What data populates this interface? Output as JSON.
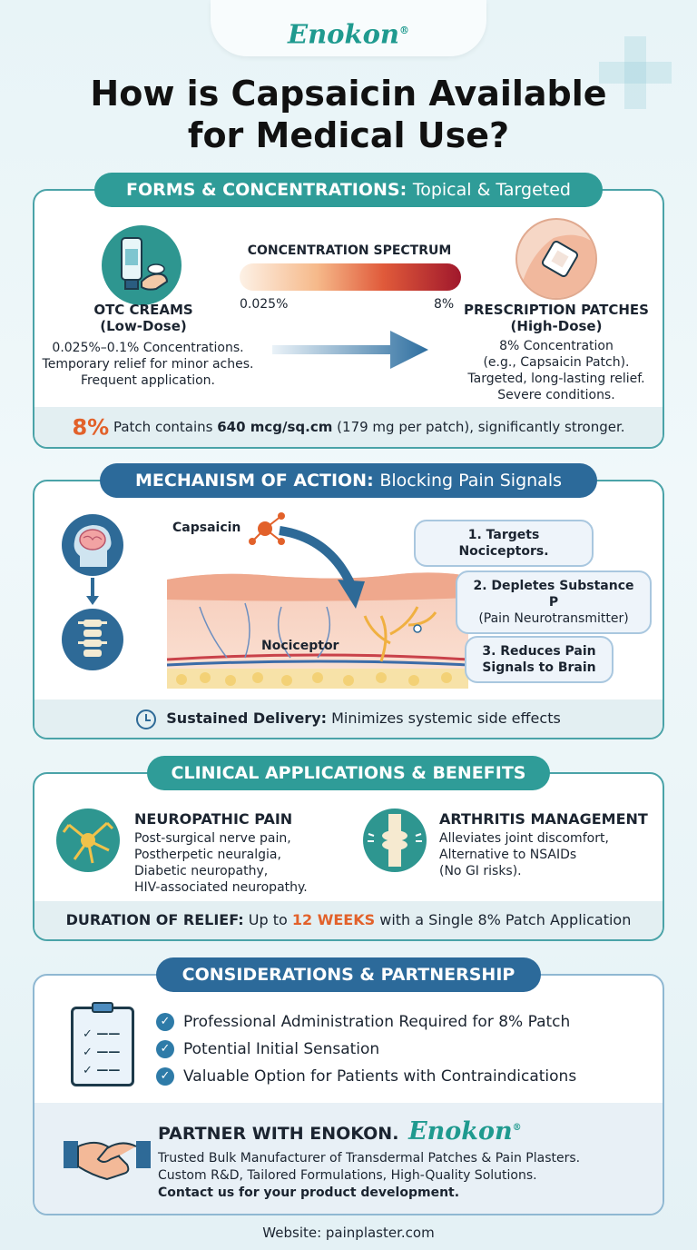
{
  "brand": {
    "name": "Enokon",
    "reg": "®"
  },
  "title": {
    "line1": "How is Capsaicin Available",
    "line2": "for Medical Use?"
  },
  "forms": {
    "header_bold": "FORMS & CONCENTRATIONS:",
    "header_light": "Topical & Targeted",
    "spectrum_title": "CONCENTRATION SPECTRUM",
    "spectrum_min": "0.025%",
    "spectrum_max": "8%",
    "otc_title": "OTC CREAMS",
    "otc_sub": "(Low-Dose)",
    "otc_lines": [
      "0.025%–0.1% Concentrations.",
      "Temporary relief for minor aches.",
      "Frequent application."
    ],
    "rx_title": "PRESCRIPTION PATCHES",
    "rx_sub": "(High-Dose)",
    "rx_lines": [
      "8% Concentration",
      "(e.g., Capsaicin Patch).",
      "Targeted, long-lasting relief.",
      "Severe conditions."
    ],
    "footer_big": "8%",
    "footer_a": "Patch contains",
    "footer_b": "640 mcg/sq.cm",
    "footer_c": "(179 mg per patch), significantly stronger."
  },
  "mechanism": {
    "header_bold": "MECHANISM OF ACTION:",
    "header_light": "Blocking Pain Signals",
    "capsaicin_label": "Capsaicin",
    "nociceptor_label": "Nociceptor",
    "step1": "1. Targets Nociceptors.",
    "step2a": "2. Depletes Substance P",
    "step2b": "(Pain Neurotransmitter)",
    "step3a": "3. Reduces Pain",
    "step3b": "Signals to Brain",
    "footer_bold": "Sustained Delivery:",
    "footer_text": "Minimizes systemic side effects"
  },
  "clinical": {
    "header": "CLINICAL APPLICATIONS & BENEFITS",
    "neuro_title": "NEUROPATHIC PAIN",
    "neuro_lines": [
      "Post-surgical nerve pain,",
      "Postherpetic neuralgia,",
      "Diabetic neuropathy,",
      "HIV-associated neuropathy."
    ],
    "arth_title": "ARTHRITIS MANAGEMENT",
    "arth_lines": [
      "Alleviates joint discomfort,",
      "Alternative to NSAIDs",
      "(No GI risks)."
    ],
    "footer_bold": "DURATION OF RELIEF:",
    "footer_a": "Up to",
    "footer_hl": "12 WEEKS",
    "footer_b": "with a Single 8% Patch Application"
  },
  "considerations": {
    "header": "CONSIDERATIONS & PARTNERSHIP",
    "items": [
      "Professional Administration Required for 8% Patch",
      "Potential Initial Sensation",
      "Valuable Option for Patients with Contraindications"
    ],
    "partner_title": "PARTNER WITH ENOKON.",
    "partner_lines": [
      "Trusted Bulk Manufacturer of Transdermal Patches & Pain Plasters.",
      "Custom R&D, Tailored Formulations, High-Quality Solutions."
    ],
    "partner_cta": "Contact us for your product development."
  },
  "website": "Website: painplaster.com",
  "colors": {
    "teal": "#2f9c98",
    "blue": "#2c6a9a",
    "orange": "#e2612a",
    "dark_red": "#a0182c"
  }
}
